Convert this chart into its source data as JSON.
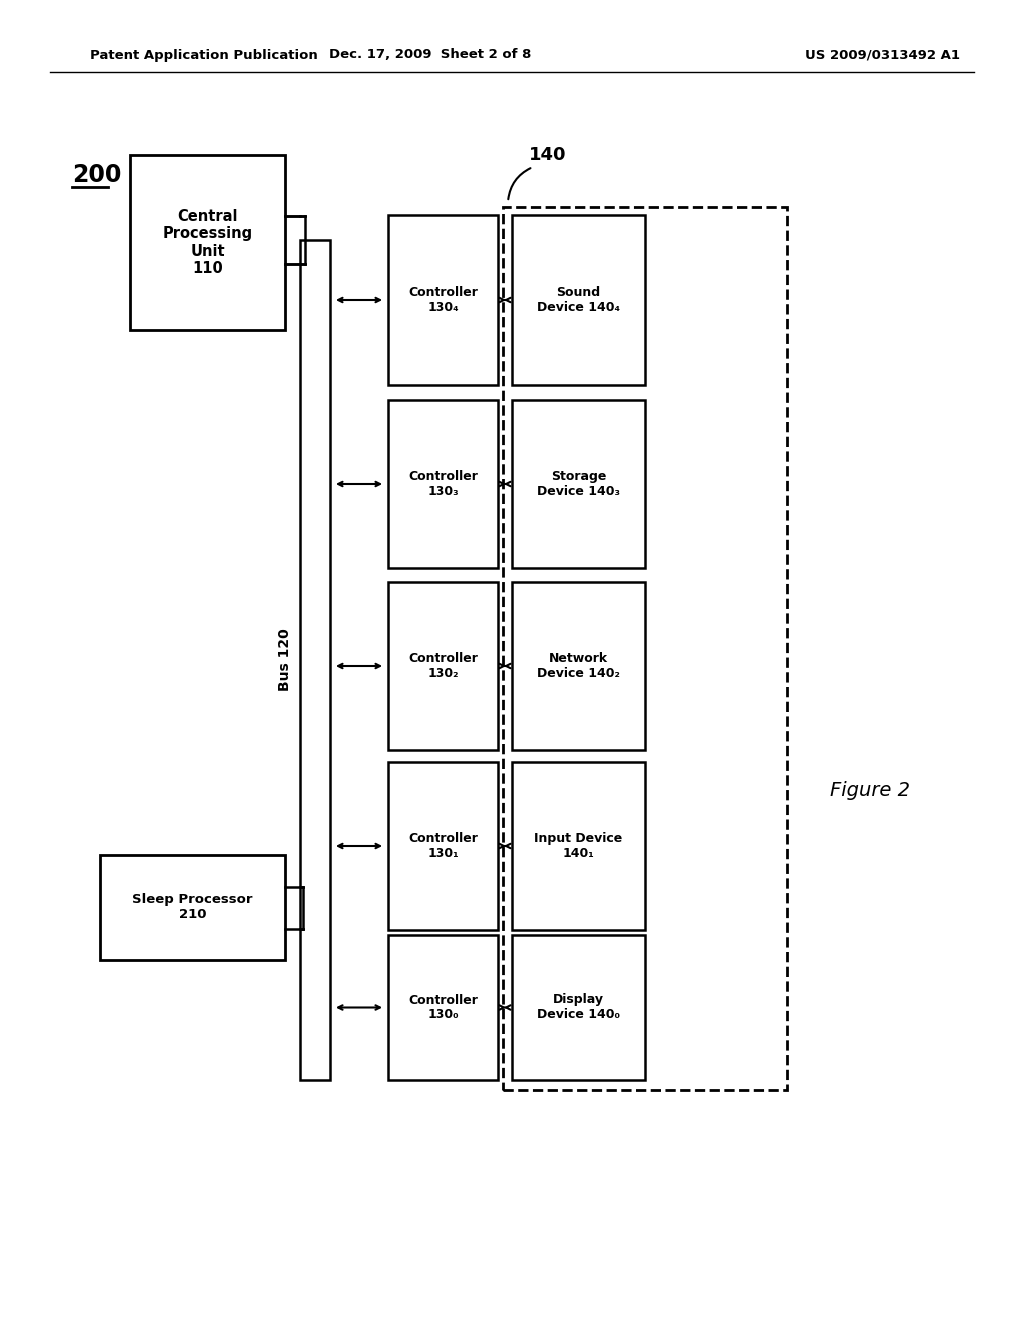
{
  "header_left": "Patent Application Publication",
  "header_mid": "Dec. 17, 2009  Sheet 2 of 8",
  "header_right": "US 2009/0313492 A1",
  "fig_label": "200",
  "fig_caption": "Figure 2",
  "cpu_label": "Central\nProcessing\nUnit\n110",
  "sleep_label": "Sleep Processor\n210",
  "bus_label": "Bus 120",
  "region_label": "140",
  "controllers": [
    "Controller\n130₄",
    "Controller\n130₃",
    "Controller\n130₂",
    "Controller\n130₁",
    "Controller\n130₀"
  ],
  "devices": [
    "Sound\nDevice 140₄",
    "Storage\nDevice 140₃",
    "Network\nDevice 140₂",
    "Input Device\n140₁",
    "Display\nDevice 140₀"
  ],
  "background_color": "#ffffff",
  "text_color": "#000000"
}
